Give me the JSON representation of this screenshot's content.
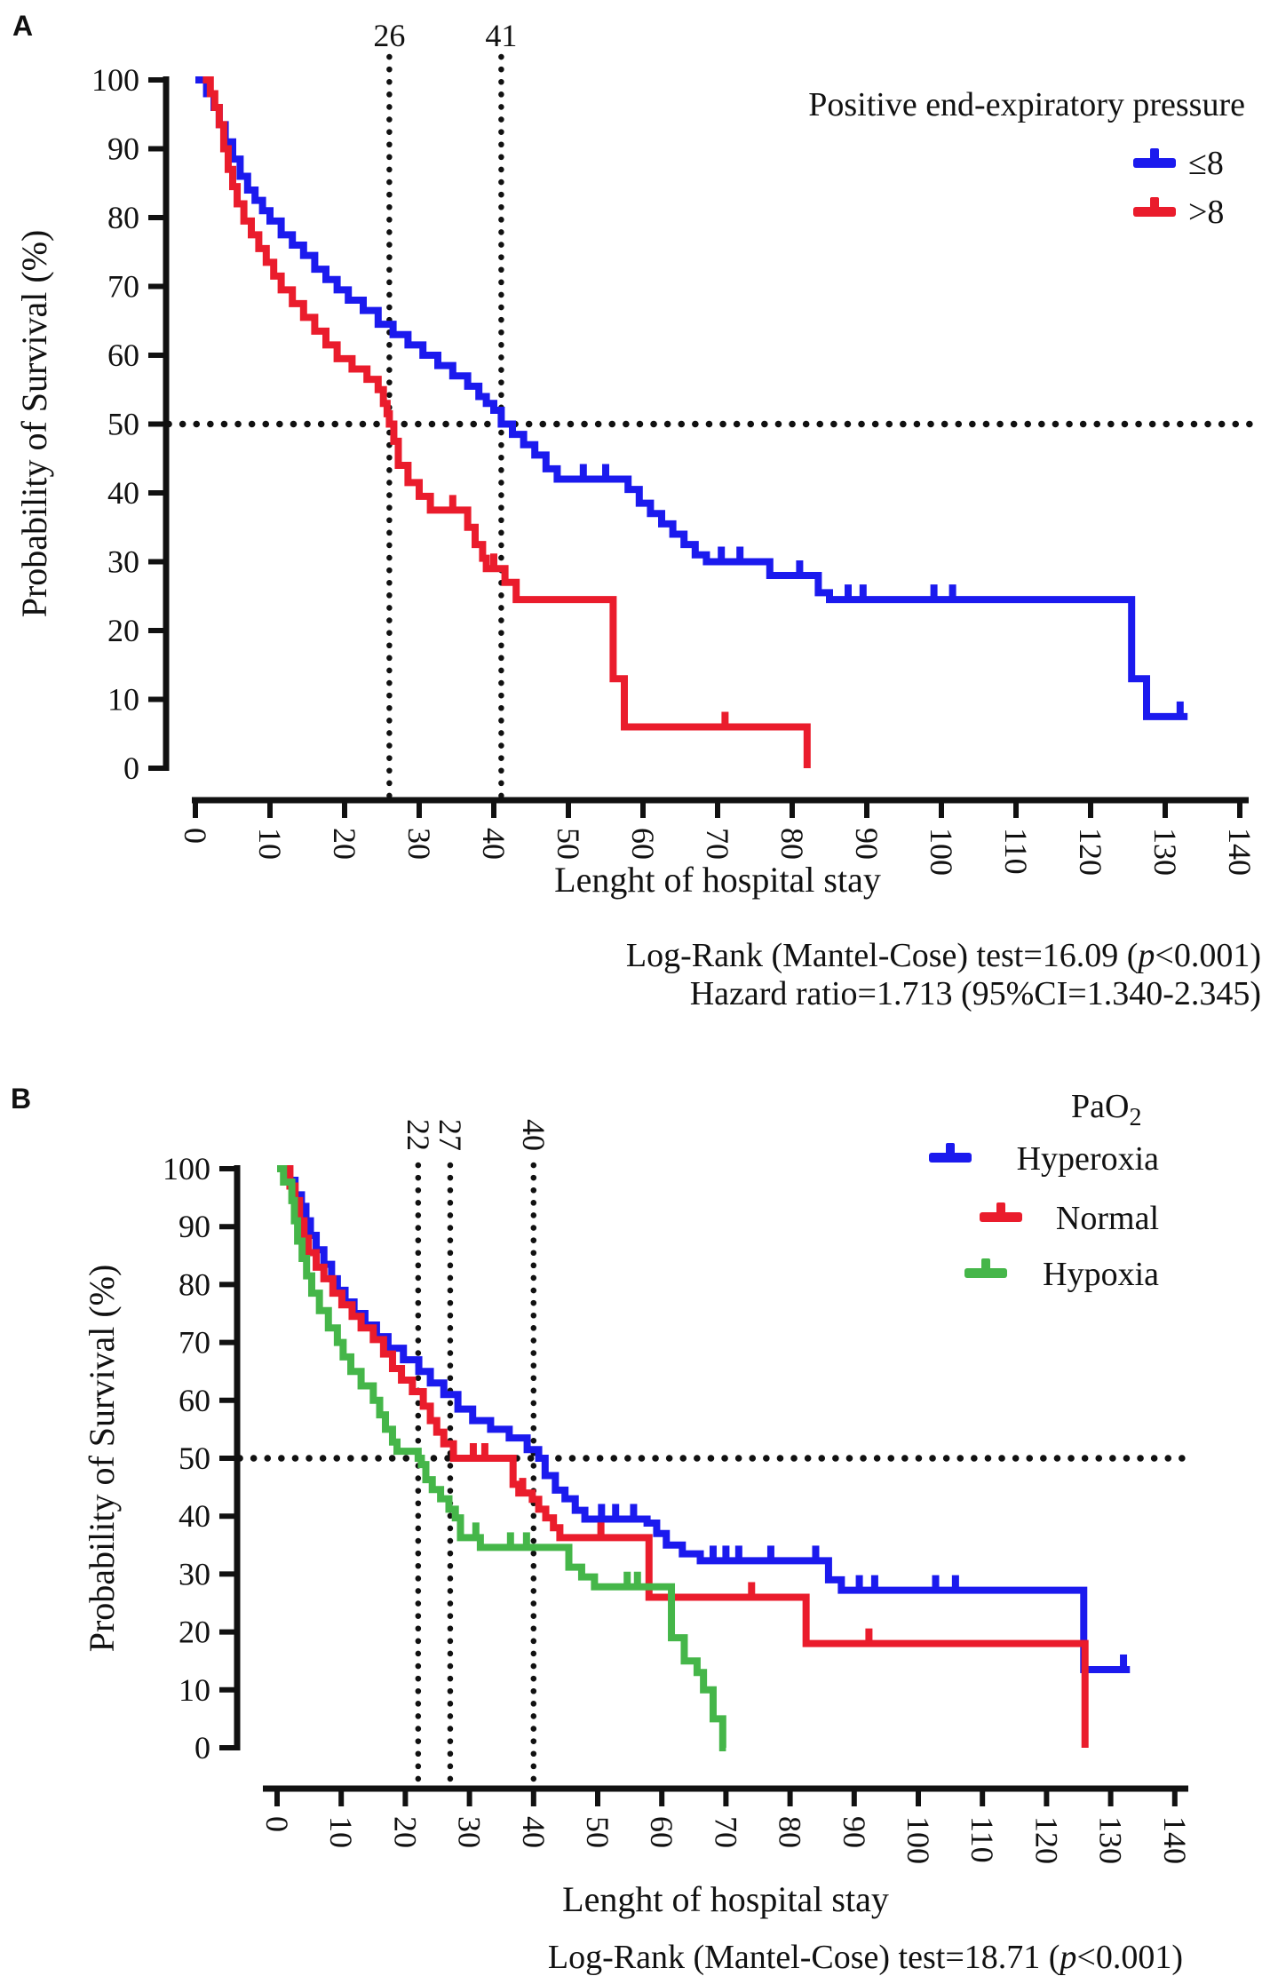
{
  "figure": {
    "background": "#ffffff",
    "panel_count": 2
  },
  "chart_data": [
    {
      "id": "panel-A",
      "type": "line",
      "subtype": "kaplan_meier_step",
      "panel_label": "A",
      "legend_title": "Positive end-expiratory pressure",
      "xlabel": "Lenght of hospital stay",
      "ylabel": "Probability of Survival (%)",
      "xlim": [
        0,
        140
      ],
      "ylim": [
        0,
        100
      ],
      "x_ticks": [
        0,
        10,
        20,
        30,
        40,
        50,
        60,
        70,
        80,
        90,
        100,
        110,
        120,
        130,
        140
      ],
      "y_ticks": [
        0,
        10,
        20,
        30,
        40,
        50,
        60,
        70,
        80,
        90,
        100
      ],
      "grid": false,
      "reference_line_y": 50,
      "median_markers": [
        {
          "x": 26,
          "label": "26"
        },
        {
          "x": 41,
          "label": "41"
        }
      ],
      "legend_position": "top-right",
      "series": [
        {
          "name": "≤8",
          "color": "#1b1aee",
          "points": [
            [
              0,
              100
            ],
            [
              1.5,
              98
            ],
            [
              2.5,
              96
            ],
            [
              3.2,
              93.5
            ],
            [
              4,
              91
            ],
            [
              5,
              88.5
            ],
            [
              6,
              86
            ],
            [
              7,
              84
            ],
            [
              8,
              82.5
            ],
            [
              9,
              81
            ],
            [
              10,
              79.5
            ],
            [
              11.5,
              77.5
            ],
            [
              13,
              76
            ],
            [
              14.5,
              74.5
            ],
            [
              16,
              72.5
            ],
            [
              17.5,
              71
            ],
            [
              19,
              69.5
            ],
            [
              20.5,
              68
            ],
            [
              22.5,
              66.5
            ],
            [
              24.5,
              64.5
            ],
            [
              26.5,
              63
            ],
            [
              28.5,
              61.5
            ],
            [
              30.5,
              60
            ],
            [
              32.5,
              58.5
            ],
            [
              34.5,
              57
            ],
            [
              36.5,
              55.5
            ],
            [
              38,
              54
            ],
            [
              39,
              53
            ],
            [
              40,
              52
            ],
            [
              41,
              50
            ],
            [
              42.5,
              48.5
            ],
            [
              44,
              47
            ],
            [
              45.5,
              45.5
            ],
            [
              47,
              43.5
            ],
            [
              48.5,
              42
            ],
            [
              58,
              40.5
            ],
            [
              59.5,
              38.5
            ],
            [
              61,
              37
            ],
            [
              62.5,
              35.5
            ],
            [
              64,
              34
            ],
            [
              65.5,
              32.5
            ],
            [
              67,
              31
            ],
            [
              68.5,
              30
            ],
            [
              77,
              28
            ],
            [
              83.5,
              25.5
            ],
            [
              85,
              24.5
            ],
            [
              125.5,
              13
            ],
            [
              127.5,
              7.5
            ]
          ],
          "end_x": 133,
          "censor_x": [
            52,
            55,
            70.5,
            73,
            81,
            87.5,
            89.5,
            99,
            101.5,
            132
          ]
        },
        {
          "name": ">8",
          "color": "#ea1c2c",
          "points": [
            [
              1,
              100
            ],
            [
              2,
              98
            ],
            [
              2.6,
              96
            ],
            [
              3.2,
              93.5
            ],
            [
              3.8,
              90
            ],
            [
              4.4,
              87
            ],
            [
              5,
              84.5
            ],
            [
              5.6,
              82
            ],
            [
              6.5,
              79.5
            ],
            [
              7.5,
              77.5
            ],
            [
              8.5,
              75.5
            ],
            [
              9.5,
              73.5
            ],
            [
              10.5,
              71.5
            ],
            [
              11.5,
              69.5
            ],
            [
              13,
              67.5
            ],
            [
              14.5,
              65.5
            ],
            [
              16,
              63.5
            ],
            [
              17.5,
              61.5
            ],
            [
              19,
              59.5
            ],
            [
              21,
              58
            ],
            [
              23,
              56.5
            ],
            [
              24.5,
              55
            ],
            [
              25.2,
              53
            ],
            [
              25.7,
              51.5
            ],
            [
              26,
              50
            ],
            [
              26.6,
              47.5
            ],
            [
              27.2,
              44
            ],
            [
              28.5,
              41.5
            ],
            [
              30,
              39.5
            ],
            [
              31.5,
              37.5
            ],
            [
              36.5,
              35
            ],
            [
              37.5,
              32.5
            ],
            [
              38.5,
              30.5
            ],
            [
              39,
              29
            ],
            [
              41.5,
              27
            ],
            [
              43,
              24.5
            ],
            [
              56,
              13
            ],
            [
              57.5,
              6
            ],
            [
              82,
              0
            ]
          ],
          "end_x": 82,
          "censor_x": [
            34.5,
            40,
            71
          ]
        }
      ],
      "stats_lines": [
        [
          {
            "text": "Log-Rank (Mantel-Cose) test=16.09 ("
          },
          {
            "text": "p",
            "italic": true
          },
          {
            "text": "<0.001)"
          }
        ],
        [
          {
            "text": "Hazard ratio=1.713 (95%CI=1.340-2.345)"
          }
        ]
      ]
    },
    {
      "id": "panel-B",
      "type": "line",
      "subtype": "kaplan_meier_step",
      "panel_label": "B",
      "legend_title_main": "PaO",
      "legend_title_sub": "2",
      "xlabel": "Lenght of hospital stay",
      "ylabel": "Probability of Survival (%)",
      "xlim": [
        0,
        140
      ],
      "ylim": [
        0,
        100
      ],
      "x_ticks": [
        0,
        10,
        20,
        30,
        40,
        50,
        60,
        70,
        80,
        90,
        100,
        110,
        120,
        130,
        140
      ],
      "y_ticks": [
        0,
        10,
        20,
        30,
        40,
        50,
        60,
        70,
        80,
        90,
        100
      ],
      "grid": false,
      "reference_line_y": 50,
      "median_markers": [
        {
          "x": 22,
          "label": "22"
        },
        {
          "x": 27,
          "label": "27"
        },
        {
          "x": 40,
          "label": "40"
        }
      ],
      "legend_position": "top-right",
      "series": [
        {
          "name": "Hyperoxia",
          "color": "#1b1aee",
          "points": [
            [
              0,
              100
            ],
            [
              1.7,
              98
            ],
            [
              2.8,
              95.5
            ],
            [
              3.8,
              93.5
            ],
            [
              4.5,
              91
            ],
            [
              5.2,
              88.5
            ],
            [
              6.1,
              86
            ],
            [
              7.3,
              83.5
            ],
            [
              8.5,
              81
            ],
            [
              9.4,
              79
            ],
            [
              10.6,
              77
            ],
            [
              12,
              75
            ],
            [
              13.7,
              73
            ],
            [
              15.5,
              71
            ],
            [
              17.3,
              69
            ],
            [
              19.7,
              67
            ],
            [
              22.1,
              65
            ],
            [
              23.9,
              63
            ],
            [
              26,
              61
            ],
            [
              28.2,
              58.5
            ],
            [
              30.5,
              56.5
            ],
            [
              33.3,
              55
            ],
            [
              36.2,
              53.5
            ],
            [
              39,
              51.5
            ],
            [
              40.8,
              50
            ],
            [
              41.8,
              47
            ],
            [
              43.4,
              44.5
            ],
            [
              44.9,
              43
            ],
            [
              46.5,
              41
            ],
            [
              48,
              39.5
            ],
            [
              57.7,
              38.8
            ],
            [
              59.2,
              37
            ],
            [
              60.7,
              35
            ],
            [
              63.2,
              33.5
            ],
            [
              66,
              32.3
            ],
            [
              86,
              29
            ],
            [
              88,
              27.2
            ],
            [
              125.8,
              13.5
            ]
          ],
          "end_x": 133,
          "censor_x": [
            50.6,
            52.8,
            55.6,
            68,
            70,
            72,
            77,
            84,
            90.8,
            93.2,
            102.7,
            105.8,
            132
          ]
        },
        {
          "name": "Normal",
          "color": "#ea1c2c",
          "points": [
            [
              0.5,
              100
            ],
            [
              2,
              97
            ],
            [
              2.8,
              94.5
            ],
            [
              3.5,
              91
            ],
            [
              4.2,
              88
            ],
            [
              4.9,
              85.5
            ],
            [
              6.1,
              83
            ],
            [
              7.3,
              81
            ],
            [
              8.7,
              78.5
            ],
            [
              10.1,
              76.5
            ],
            [
              11.7,
              74.5
            ],
            [
              13.1,
              72.5
            ],
            [
              15,
              70.5
            ],
            [
              16.6,
              68
            ],
            [
              18,
              65.5
            ],
            [
              19.4,
              63.5
            ],
            [
              21.1,
              61.5
            ],
            [
              22.8,
              59
            ],
            [
              23.9,
              56.5
            ],
            [
              24.9,
              54.5
            ],
            [
              26,
              52.5
            ],
            [
              27.5,
              50
            ],
            [
              36.8,
              45.5
            ],
            [
              37.7,
              44
            ],
            [
              39.8,
              42.9
            ],
            [
              40.8,
              41.2
            ],
            [
              41.9,
              39.7
            ],
            [
              43.1,
              38
            ],
            [
              44.1,
              36.3
            ],
            [
              58,
              26
            ],
            [
              82.5,
              18
            ],
            [
              126,
              0
            ]
          ],
          "end_x": 126,
          "censor_x": [
            30.6,
            32.4,
            38.3,
            50.5,
            74,
            92.3
          ]
        },
        {
          "name": "Hypoxia",
          "color": "#45b649",
          "points": [
            [
              0,
              100
            ],
            [
              1,
              97.7
            ],
            [
              2.3,
              94.5
            ],
            [
              2.7,
              91
            ],
            [
              3.2,
              87.5
            ],
            [
              3.9,
              84.5
            ],
            [
              4.6,
              81.5
            ],
            [
              5.4,
              78.5
            ],
            [
              6.6,
              75.5
            ],
            [
              8,
              72.5
            ],
            [
              9.4,
              70
            ],
            [
              10.3,
              67.5
            ],
            [
              11.5,
              65
            ],
            [
              13.1,
              62.5
            ],
            [
              15,
              60
            ],
            [
              16,
              57.5
            ],
            [
              16.9,
              55
            ],
            [
              18,
              52.8
            ],
            [
              18.7,
              51.2
            ],
            [
              22,
              50
            ],
            [
              22.5,
              48.9
            ],
            [
              23.2,
              46.3
            ],
            [
              24.2,
              44.6
            ],
            [
              25.5,
              43
            ],
            [
              26.8,
              41.2
            ],
            [
              27.8,
              39.7
            ],
            [
              28.6,
              36.3
            ],
            [
              31.7,
              34.6
            ],
            [
              45.5,
              31.2
            ],
            [
              47.5,
              29.5
            ],
            [
              49.5,
              27.8
            ],
            [
              61.5,
              19
            ],
            [
              63.5,
              15
            ],
            [
              65.5,
              13
            ],
            [
              66.5,
              10
            ],
            [
              68,
              5
            ],
            [
              69.5,
              0
            ]
          ],
          "end_x": 70,
          "censor_x": [
            31,
            36.4,
            38.9,
            54.6,
            56.2
          ]
        }
      ],
      "stats_lines": [
        [
          {
            "text": "Log-Rank (Mantel-Cose) test=18.71 ("
          },
          {
            "text": "p",
            "italic": true
          },
          {
            "text": "<0.001)"
          }
        ]
      ]
    }
  ]
}
